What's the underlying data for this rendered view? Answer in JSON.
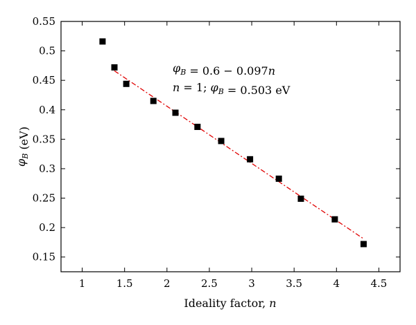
{
  "chart_data": {
    "type": "scatter",
    "title": "",
    "xlabel": {
      "text": "Ideality factor, ",
      "var": "n"
    },
    "ylabel": {
      "sym": "φ",
      "sub": "B",
      "unit": " (eV)"
    },
    "xlim": [
      0.75,
      4.75
    ],
    "ylim": [
      0.125,
      0.55
    ],
    "xticks": [
      1,
      1.5,
      2,
      2.5,
      3,
      3.5,
      4,
      4.5
    ],
    "xtick_labels": [
      "1",
      "1.5",
      "2",
      "2.5",
      "3",
      "3.5",
      "4",
      "4.5"
    ],
    "yticks": [
      0.15,
      0.2,
      0.25,
      0.3,
      0.35,
      0.4,
      0.45,
      0.5,
      0.55
    ],
    "ytick_labels": [
      "0.15",
      "0.2",
      "0.25",
      "0.3",
      "0.35",
      "0.4",
      "0.45",
      "0.5",
      "0.55"
    ],
    "grid": false,
    "series": [
      {
        "marker": "square",
        "color": "#000000",
        "x": [
          1.24,
          1.38,
          1.52,
          1.84,
          2.1,
          2.36,
          2.64,
          2.98,
          3.32,
          3.58,
          3.98,
          4.32
        ],
        "y": [
          0.516,
          0.472,
          0.444,
          0.415,
          0.395,
          0.371,
          0.347,
          0.316,
          0.283,
          0.249,
          0.214,
          0.172
        ]
      }
    ],
    "fit_line": {
      "style": "dash-dot",
      "color": "#e00000",
      "intercept": 0.6,
      "slope": -0.097,
      "x_range": [
        1.38,
        4.32
      ]
    },
    "annotations": [
      {
        "parts": [
          [
            "φ",
            "ital"
          ],
          [
            "B",
            "sub"
          ],
          [
            " = 0.6 − 0.097",
            ""
          ],
          [
            "n",
            "ital"
          ]
        ]
      },
      {
        "parts": [
          [
            "n",
            "ital"
          ],
          [
            " = 1; ",
            ""
          ],
          [
            "φ",
            "ital"
          ],
          [
            "B",
            "sub"
          ],
          [
            " = 0.503 eV",
            ""
          ]
        ]
      }
    ]
  }
}
